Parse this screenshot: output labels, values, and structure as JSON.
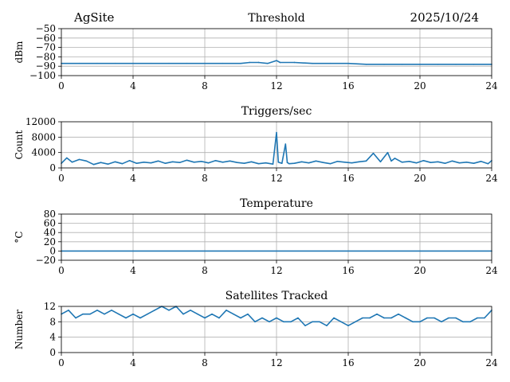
{
  "header": {
    "site": "AgSite",
    "date": "2025/10/24"
  },
  "chart_data": [
    {
      "type": "line",
      "title": "Threshold",
      "ylabel": "dBm",
      "xlabel": "",
      "xlim": [
        0,
        24
      ],
      "ylim": [
        -100,
        -50
      ],
      "x_ticks": [
        0,
        4,
        8,
        12,
        16,
        20,
        24
      ],
      "y_ticks": [
        -100,
        -90,
        -80,
        -70,
        -60,
        -50
      ],
      "grid": true,
      "color": "#1f77b4",
      "series": [
        {
          "x": [
            0,
            1,
            2,
            3,
            4,
            5,
            6,
            7,
            8,
            9,
            10,
            10.5,
            11,
            11.5,
            12,
            12.2,
            13,
            14,
            15,
            16,
            17,
            18,
            19,
            20,
            21,
            22,
            23,
            24
          ],
          "values": [
            -87,
            -87,
            -87,
            -87,
            -87,
            -87,
            -87,
            -87,
            -87,
            -87,
            -87,
            -86,
            -86,
            -87,
            -84,
            -86,
            -86,
            -87,
            -87,
            -87,
            -88,
            -88,
            -88,
            -88,
            -88,
            -88,
            -88,
            -88
          ]
        }
      ]
    },
    {
      "type": "line",
      "title": "Triggers/sec",
      "ylabel": "Count",
      "xlabel": "",
      "xlim": [
        0,
        24
      ],
      "ylim": [
        0,
        12000
      ],
      "x_ticks": [
        0,
        4,
        8,
        12,
        16,
        20,
        24
      ],
      "y_ticks": [
        0,
        4000,
        8000,
        12000
      ],
      "grid": true,
      "color": "#1f77b4",
      "series": [
        {
          "x": [
            0,
            0.3,
            0.6,
            1,
            1.4,
            1.8,
            2.2,
            2.6,
            3,
            3.4,
            3.8,
            4.2,
            4.6,
            5,
            5.4,
            5.8,
            6.2,
            6.6,
            7,
            7.4,
            7.8,
            8.2,
            8.6,
            9,
            9.4,
            9.8,
            10.2,
            10.6,
            11,
            11.4,
            11.8,
            12,
            12.1,
            12.3,
            12.5,
            12.6,
            12.7,
            13,
            13.4,
            13.8,
            14.2,
            14.6,
            15,
            15.4,
            15.8,
            16.2,
            16.6,
            17,
            17.4,
            17.8,
            18.2,
            18.4,
            18.6,
            19,
            19.4,
            19.8,
            20.2,
            20.6,
            21,
            21.4,
            21.8,
            22.2,
            22.6,
            23,
            23.4,
            23.8,
            24
          ],
          "values": [
            1200,
            2600,
            1500,
            2200,
            1800,
            900,
            1400,
            1000,
            1600,
            1100,
            1900,
            1200,
            1500,
            1300,
            1800,
            1200,
            1600,
            1400,
            2000,
            1500,
            1700,
            1300,
            1900,
            1500,
            1800,
            1400,
            1200,
            1600,
            1100,
            1300,
            1000,
            9200,
            1500,
            1200,
            6200,
            1400,
            1100,
            1200,
            1600,
            1300,
            1800,
            1400,
            1100,
            1700,
            1500,
            1300,
            1600,
            1800,
            3800,
            1600,
            4000,
            1800,
            2500,
            1500,
            1700,
            1300,
            1900,
            1400,
            1600,
            1200,
            1800,
            1300,
            1500,
            1200,
            1700,
            1100,
            1900
          ]
        }
      ]
    },
    {
      "type": "line",
      "title": "Temperature",
      "ylabel": "°C",
      "xlabel": "",
      "xlim": [
        0,
        24
      ],
      "ylim": [
        -20,
        80
      ],
      "x_ticks": [
        0,
        4,
        8,
        12,
        16,
        20,
        24
      ],
      "y_ticks": [
        -20,
        0,
        20,
        40,
        60,
        80
      ],
      "grid": true,
      "color": "#1f77b4",
      "series": [
        {
          "x": [
            0,
            24
          ],
          "values": [
            0,
            0
          ]
        }
      ]
    },
    {
      "type": "line",
      "title": "Satellites Tracked",
      "ylabel": "Number",
      "xlabel": "",
      "xlim": [
        0,
        24
      ],
      "ylim": [
        0,
        12
      ],
      "x_ticks": [
        0,
        4,
        8,
        12,
        16,
        20,
        24
      ],
      "y_ticks": [
        0,
        4,
        8,
        12
      ],
      "grid": true,
      "color": "#1f77b4",
      "series": [
        {
          "x": [
            0,
            0.4,
            0.8,
            1.2,
            1.6,
            2,
            2.4,
            2.8,
            3.2,
            3.6,
            4,
            4.4,
            4.8,
            5.2,
            5.6,
            6,
            6.4,
            6.8,
            7.2,
            7.6,
            8,
            8.4,
            8.8,
            9.2,
            9.6,
            10,
            10.4,
            10.8,
            11.2,
            11.6,
            12,
            12.4,
            12.8,
            13.2,
            13.6,
            14,
            14.4,
            14.8,
            15.2,
            15.6,
            16,
            16.4,
            16.8,
            17.2,
            17.6,
            18,
            18.4,
            18.8,
            19.2,
            19.6,
            20,
            20.4,
            20.8,
            21.2,
            21.6,
            22,
            22.4,
            22.8,
            23.2,
            23.6,
            24
          ],
          "values": [
            10,
            11,
            9,
            10,
            10,
            11,
            10,
            11,
            10,
            9,
            10,
            9,
            10,
            11,
            12,
            11,
            12,
            10,
            11,
            10,
            9,
            10,
            9,
            11,
            10,
            9,
            10,
            8,
            9,
            8,
            9,
            8,
            8,
            9,
            7,
            8,
            8,
            7,
            9,
            8,
            7,
            8,
            9,
            9,
            10,
            9,
            9,
            10,
            9,
            8,
            8,
            9,
            9,
            8,
            9,
            9,
            8,
            8,
            9,
            9,
            11
          ]
        }
      ]
    }
  ]
}
